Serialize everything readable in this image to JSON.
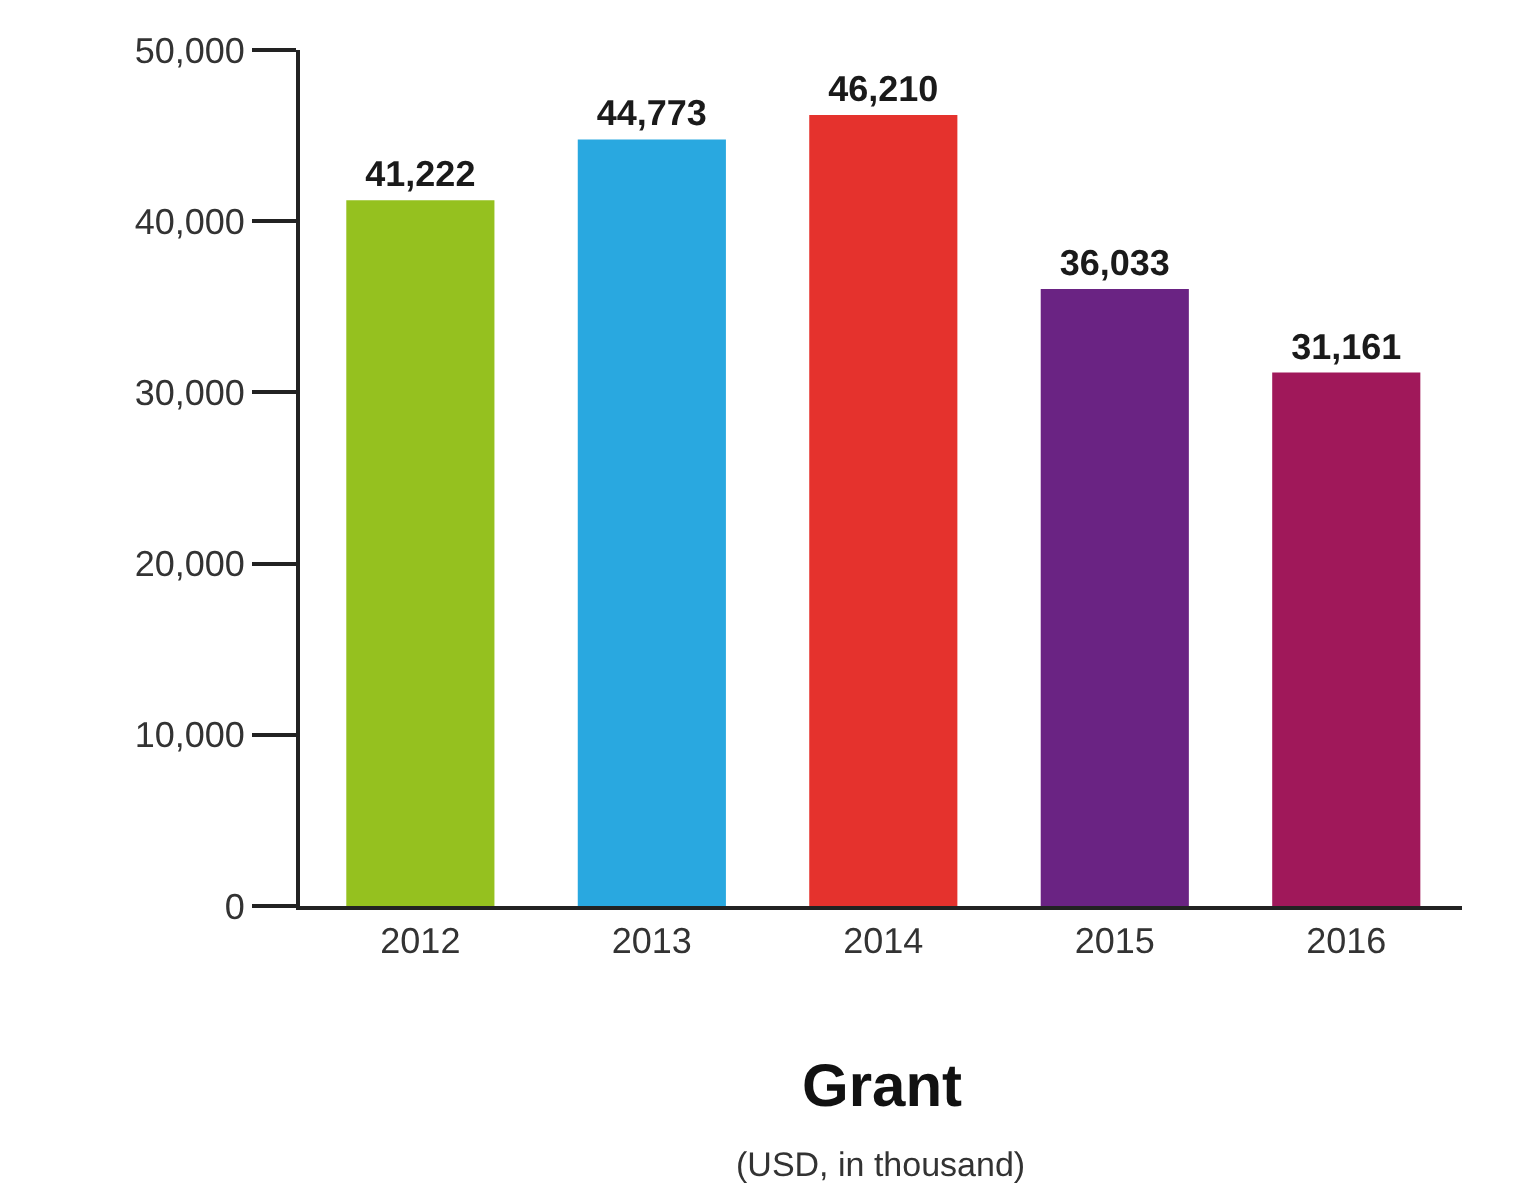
{
  "chart_data": {
    "type": "bar",
    "title": "Grant",
    "subtitle": "(USD, in thousand)",
    "categories": [
      "2012",
      "2013",
      "2014",
      "2015",
      "2016"
    ],
    "values": [
      41222,
      44773,
      46210,
      36033,
      31161
    ],
    "colors": [
      "#95c11f",
      "#29a8e0",
      "#e5322d",
      "#6a2383",
      "#a0185a"
    ],
    "ylim": [
      0,
      50000
    ],
    "yticks": [
      {
        "value": 0,
        "label": "0"
      },
      {
        "value": 10000,
        "label": "10,000"
      },
      {
        "value": 20000,
        "label": "20,000"
      },
      {
        "value": 30000,
        "label": "30,000"
      },
      {
        "value": 40000,
        "label": "40,000"
      },
      {
        "value": 50000,
        "label": "50,000"
      }
    ],
    "value_labels": [
      "41,222",
      "44,773",
      "46,210",
      "36,033",
      "31,161"
    ]
  }
}
